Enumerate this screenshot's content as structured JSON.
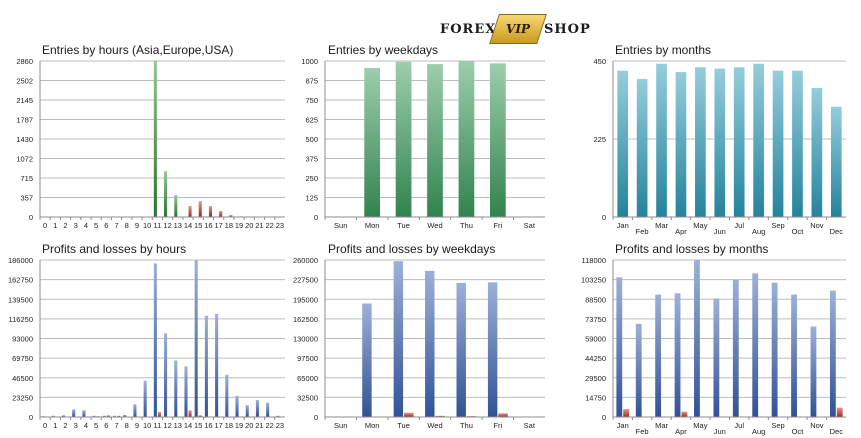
{
  "logo": {
    "left": "FOREX",
    "badge": "VIP",
    "right": "SHOP"
  },
  "chart_data": [
    {
      "id": "entries-hours",
      "type": "bar",
      "title": "Entries by hours (Asia,Europe,USA)",
      "categories": [
        "0",
        "1",
        "2",
        "3",
        "4",
        "5",
        "6",
        "7",
        "8",
        "9",
        "10",
        "11",
        "12",
        "13",
        "14",
        "15",
        "16",
        "17",
        "18",
        "19",
        "20",
        "21",
        "22",
        "23"
      ],
      "yticks": [
        "0",
        "357",
        "715",
        "1072",
        "1430",
        "1787",
        "2145",
        "2502",
        "2860"
      ],
      "ylim": [
        0,
        2860
      ],
      "series": [
        {
          "color": "#2e8b2e",
          "values": [
            0,
            0,
            0,
            0,
            0,
            0,
            0,
            0,
            0,
            0,
            0,
            2860,
            840,
            400,
            0,
            0,
            0,
            0,
            0,
            0,
            0,
            0,
            0,
            0
          ]
        },
        {
          "color": "#b03018",
          "values": [
            0,
            0,
            0,
            0,
            0,
            0,
            0,
            0,
            0,
            0,
            0,
            0,
            0,
            0,
            200,
            290,
            200,
            110,
            35,
            12,
            0,
            0,
            0,
            0
          ]
        }
      ]
    },
    {
      "id": "entries-weekdays",
      "type": "bar",
      "title": "Entries by weekdays",
      "categories": [
        "Sun",
        "Mon",
        "Tue",
        "Wed",
        "Thu",
        "Fri",
        "Sat"
      ],
      "yticks": [
        "0",
        "125",
        "250",
        "375",
        "500",
        "625",
        "750",
        "875",
        "1000"
      ],
      "ylim": [
        0,
        1000
      ],
      "series": [
        {
          "color": "#3a9a5a",
          "values": [
            0,
            955,
            995,
            980,
            998,
            985,
            0
          ]
        }
      ]
    },
    {
      "id": "entries-months",
      "type": "bar",
      "title": "Entries by months",
      "categories": [
        "Jan",
        "Feb",
        "Mar",
        "Apr",
        "May",
        "Jun",
        "Jul",
        "Aug",
        "Sep",
        "Oct",
        "Nov",
        "Dec"
      ],
      "yticks": [
        "0",
        "225",
        "450"
      ],
      "ylim": [
        0,
        450
      ],
      "series": [
        {
          "color": "#2a9ab8",
          "values": [
            422,
            398,
            442,
            418,
            432,
            428,
            432,
            442,
            422,
            422,
            372,
            318
          ]
        }
      ]
    },
    {
      "id": "pl-hours",
      "type": "bar",
      "title": "Profits and losses by hours",
      "categories": [
        "0",
        "1",
        "2",
        "3",
        "4",
        "5",
        "6",
        "7",
        "8",
        "9",
        "10",
        "11",
        "12",
        "13",
        "14",
        "15",
        "16",
        "17",
        "18",
        "19",
        "20",
        "21",
        "22",
        "23"
      ],
      "yticks": [
        "0",
        "23250",
        "46500",
        "69750",
        "93000",
        "116250",
        "139500",
        "162750",
        "186000"
      ],
      "ylim": [
        0,
        186000
      ],
      "series": [
        {
          "color": "#3a60b0",
          "values": [
            1000,
            1500,
            2000,
            9000,
            8000,
            1500,
            1500,
            1500,
            2500,
            15000,
            43000,
            182000,
            99000,
            67000,
            60000,
            186000,
            120000,
            122000,
            50000,
            25000,
            14000,
            20000,
            17000,
            1500
          ]
        },
        {
          "color": "#c03020",
          "values": [
            0,
            0,
            0,
            0,
            0,
            1000,
            2000,
            1500,
            0,
            0,
            0,
            6000,
            0,
            0,
            8000,
            2000,
            0,
            0,
            0,
            0,
            0,
            0,
            0,
            0
          ]
        }
      ]
    },
    {
      "id": "pl-weekdays",
      "type": "bar",
      "title": "Profits and losses by weekdays",
      "categories": [
        "Sun",
        "Mon",
        "Tue",
        "Wed",
        "Thu",
        "Fri",
        "Sat"
      ],
      "yticks": [
        "0",
        "32500",
        "65000",
        "97500",
        "130000",
        "162500",
        "195000",
        "227500",
        "260000"
      ],
      "ylim": [
        0,
        260000
      ],
      "series": [
        {
          "color": "#3a60b0",
          "values": [
            0,
            188000,
            258000,
            242000,
            222000,
            223000,
            0
          ]
        },
        {
          "color": "#c03020",
          "values": [
            0,
            0,
            7000,
            2000,
            1500,
            6000,
            0
          ]
        }
      ]
    },
    {
      "id": "pl-months",
      "type": "bar",
      "title": "Profits and losses by months",
      "categories": [
        "Jan",
        "Feb",
        "Mar",
        "Apr",
        "May",
        "Jun",
        "Jul",
        "Aug",
        "Sep",
        "Oct",
        "Nov",
        "Dec"
      ],
      "yticks": [
        "0",
        "14750",
        "29500",
        "44250",
        "59000",
        "73750",
        "88500",
        "103250",
        "118000"
      ],
      "ylim": [
        0,
        118000
      ],
      "series": [
        {
          "color": "#3a60b0",
          "values": [
            105000,
            70000,
            92000,
            93000,
            118000,
            89000,
            103000,
            108000,
            101000,
            92000,
            68000,
            95000
          ]
        },
        {
          "color": "#c03020",
          "values": [
            6000,
            0,
            0,
            4000,
            0,
            0,
            0,
            0,
            0,
            0,
            0,
            7000
          ]
        }
      ]
    }
  ]
}
